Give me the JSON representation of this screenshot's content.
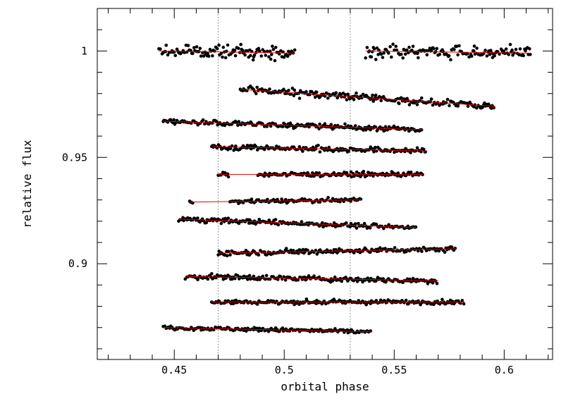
{
  "chart_data": {
    "type": "scatter",
    "title": "",
    "xlabel": "orbital phase",
    "ylabel": "relative flux",
    "xlim": [
      0.415,
      0.622
    ],
    "ylim": [
      0.855,
      1.02
    ],
    "x_ticks": [
      {
        "value": 0.45,
        "label": "0.45"
      },
      {
        "value": 0.5,
        "label": "0.5"
      },
      {
        "value": 0.55,
        "label": "0.55"
      },
      {
        "value": 0.6,
        "label": "0.6"
      }
    ],
    "y_ticks": [
      {
        "value": 0.9,
        "label": "0.9"
      },
      {
        "value": 0.95,
        "label": "0.95"
      },
      {
        "value": 1.0,
        "label": "1"
      }
    ],
    "x_minor_step": 0.01,
    "y_minor_step": 0.01,
    "vertical_reference_lines": [
      0.47,
      0.53
    ],
    "grid": false,
    "point_color": "#000000",
    "fit_color": "#e00000",
    "series": [
      {
        "x_start": 0.443,
        "x_end": 0.505,
        "y_start": 1.0,
        "y_end": 0.999,
        "scatter": 0.0028,
        "gap": null
      },
      {
        "x_start": 0.537,
        "x_end": 0.612,
        "y_start": 1.0,
        "y_end": 0.999,
        "scatter": 0.0028,
        "gap": null
      },
      {
        "x_start": 0.48,
        "x_end": 0.596,
        "y_start": 0.982,
        "y_end": 0.974,
        "scatter": 0.0017,
        "gap": null
      },
      {
        "x_start": 0.445,
        "x_end": 0.563,
        "y_start": 0.967,
        "y_end": 0.963,
        "scatter": 0.0012,
        "gap": null
      },
      {
        "x_start": 0.467,
        "x_end": 0.565,
        "y_start": 0.955,
        "y_end": 0.953,
        "scatter": 0.0012,
        "gap": null
      },
      {
        "x_start": 0.47,
        "x_end": 0.563,
        "y_start": 0.942,
        "y_end": 0.942,
        "scatter": 0.001,
        "gap": [
          0.475,
          0.488
        ]
      },
      {
        "x_start": 0.457,
        "x_end": 0.535,
        "y_start": 0.929,
        "y_end": 0.93,
        "scatter": 0.0009,
        "gap": [
          0.459,
          0.475
        ]
      },
      {
        "x_start": 0.452,
        "x_end": 0.56,
        "y_start": 0.921,
        "y_end": 0.917,
        "scatter": 0.0011,
        "gap": null
      },
      {
        "x_start": 0.47,
        "x_end": 0.578,
        "y_start": 0.905,
        "y_end": 0.907,
        "scatter": 0.0012,
        "gap": null
      },
      {
        "x_start": 0.455,
        "x_end": 0.57,
        "y_start": 0.894,
        "y_end": 0.892,
        "scatter": 0.0012,
        "gap": null
      },
      {
        "x_start": 0.467,
        "x_end": 0.582,
        "y_start": 0.882,
        "y_end": 0.882,
        "scatter": 0.001,
        "gap": null
      },
      {
        "x_start": 0.445,
        "x_end": 0.54,
        "y_start": 0.87,
        "y_end": 0.868,
        "scatter": 0.0009,
        "gap": null
      }
    ]
  }
}
